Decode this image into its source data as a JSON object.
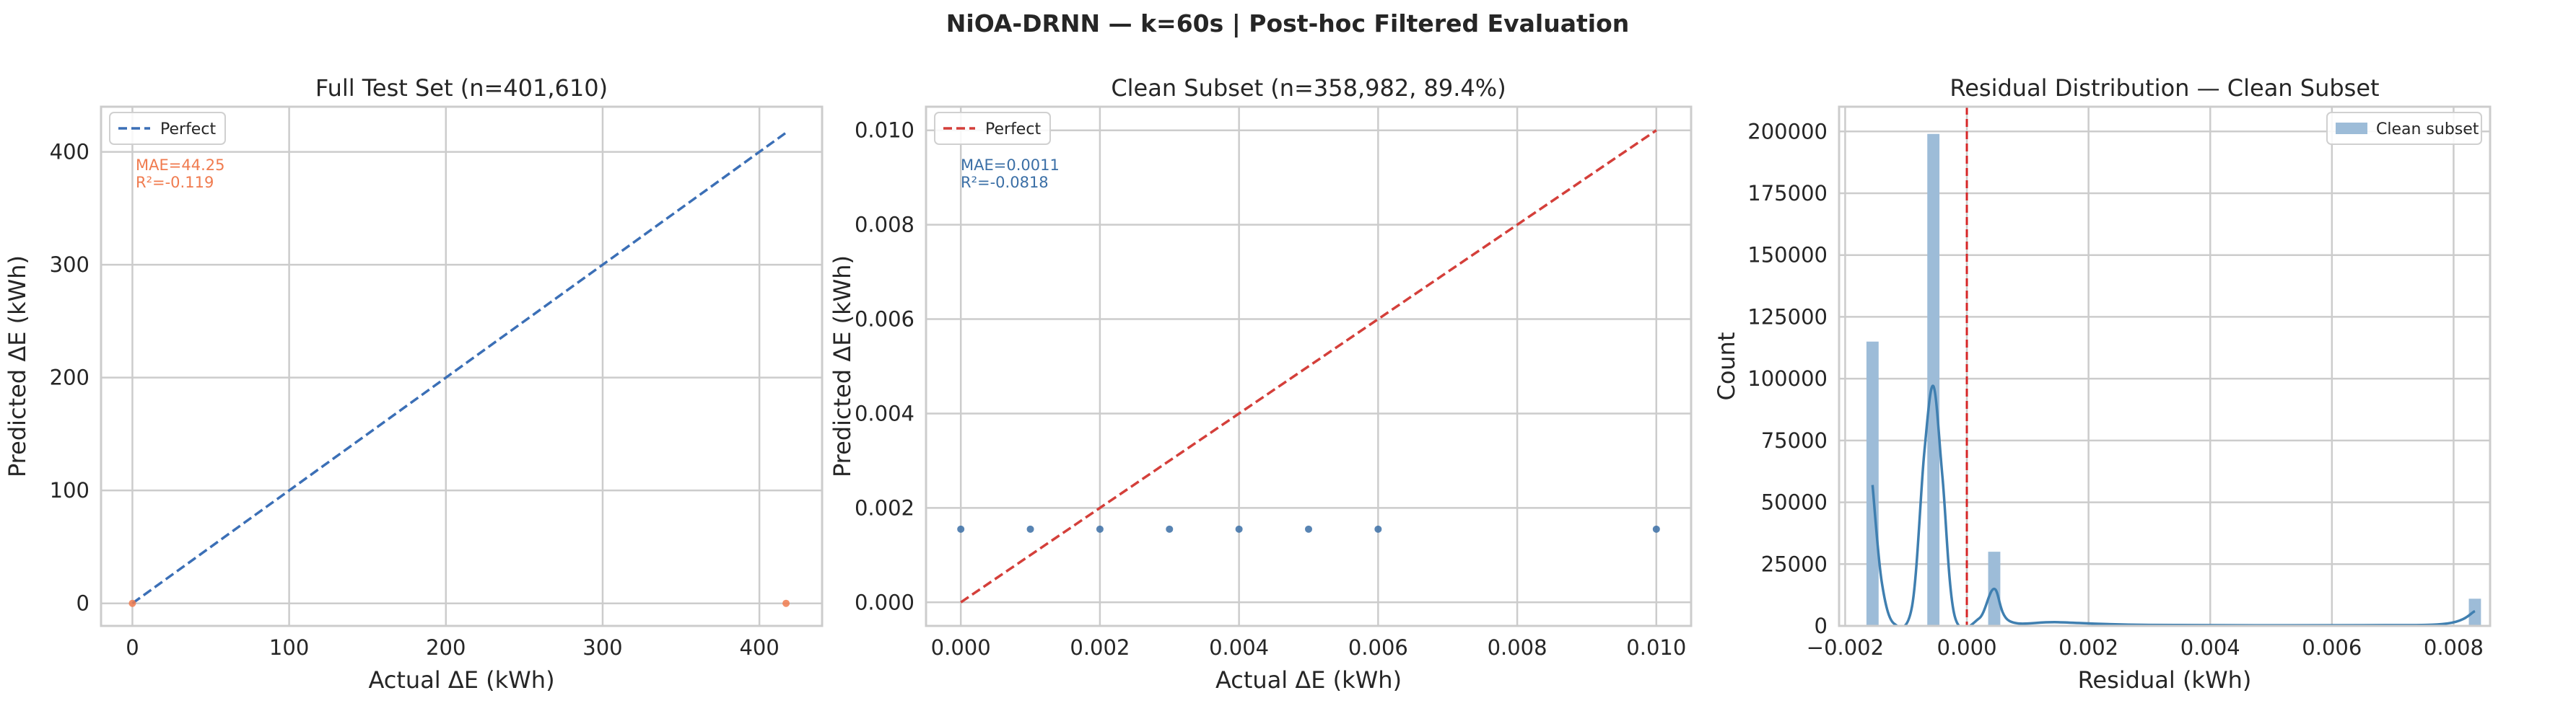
{
  "figure": {
    "suptitle": "NiOA-DRNN — k=60s | Post-hoc Filtered Evaluation"
  },
  "chart_data": [
    {
      "type": "scatter",
      "title": "Full Test Set (n=401,610)",
      "xlabel": "Actual ΔE (kWh)",
      "ylabel": "Predicted ΔE (kWh)",
      "xlim": [
        -20,
        440
      ],
      "ylim": [
        -20,
        440
      ],
      "xticks": [
        0,
        100,
        200,
        300,
        400
      ],
      "yticks": [
        0,
        100,
        200,
        300,
        400
      ],
      "xtick_labels": [
        "0",
        "100",
        "200",
        "300",
        "400"
      ],
      "ytick_labels": [
        "0",
        "100",
        "200",
        "300",
        "400"
      ],
      "grid": true,
      "legend": {
        "location": "upper-left",
        "entries": [
          "Perfect"
        ]
      },
      "reference_line": {
        "label": "Perfect",
        "from": [
          0,
          0
        ],
        "to": [
          417,
          417
        ],
        "color": "#3b6fb6",
        "style": "dashed"
      },
      "points": [
        {
          "x": 0,
          "y": 0
        },
        {
          "x": 417,
          "y": 0
        }
      ],
      "point_color": "#f07b4f",
      "annotation": {
        "lines": [
          "MAE=44.25",
          "R²=-0.119"
        ],
        "color": "#f07b4f"
      }
    },
    {
      "type": "scatter",
      "title": "Clean Subset (n=358,982, 89.4%)",
      "xlabel": "Actual ΔE (kWh)",
      "ylabel": "Predicted ΔE (kWh)",
      "xlim": [
        -0.0005,
        0.0105
      ],
      "ylim": [
        -0.0005,
        0.0105
      ],
      "xticks": [
        0,
        0.002,
        0.004,
        0.006,
        0.008,
        0.01
      ],
      "yticks": [
        0,
        0.002,
        0.004,
        0.006,
        0.008,
        0.01
      ],
      "xtick_labels": [
        "0.000",
        "0.002",
        "0.004",
        "0.006",
        "0.008",
        "0.010"
      ],
      "ytick_labels": [
        "0.000",
        "0.002",
        "0.004",
        "0.006",
        "0.008",
        "0.010"
      ],
      "grid": true,
      "legend": {
        "location": "upper-left",
        "entries": [
          "Perfect"
        ]
      },
      "reference_line": {
        "label": "Perfect",
        "from": [
          0,
          0
        ],
        "to": [
          0.01,
          0.01
        ],
        "color": "#d43f3a",
        "style": "dashed"
      },
      "points": [
        {
          "x": 0.0,
          "y": 0.00155
        },
        {
          "x": 0.001,
          "y": 0.00155
        },
        {
          "x": 0.002,
          "y": 0.00155
        },
        {
          "x": 0.003,
          "y": 0.00155
        },
        {
          "x": 0.004,
          "y": 0.00155
        },
        {
          "x": 0.005,
          "y": 0.00155
        },
        {
          "x": 0.006,
          "y": 0.00155
        },
        {
          "x": 0.01,
          "y": 0.00155
        }
      ],
      "point_color": "#3b6fa6",
      "annotation": {
        "lines": [
          "MAE=0.0011",
          "R²=-0.0818"
        ],
        "color": "#3b6fa6"
      }
    },
    {
      "type": "bar",
      "title": "Residual Distribution — Clean Subset",
      "xlabel": "Residual (kWh)",
      "ylabel": "Count",
      "xlim": [
        -0.0021,
        0.0086
      ],
      "ylim": [
        0,
        210000
      ],
      "xticks": [
        -0.002,
        0,
        0.002,
        0.004,
        0.006,
        0.008
      ],
      "yticks": [
        0,
        25000,
        50000,
        75000,
        100000,
        125000,
        150000,
        175000,
        200000
      ],
      "xtick_labels": [
        "−0.002",
        "0.000",
        "0.002",
        "0.004",
        "0.006",
        "0.008"
      ],
      "ytick_labels": [
        "0",
        "25000",
        "50000",
        "75000",
        "100000",
        "125000",
        "150000",
        "175000",
        "200000"
      ],
      "grid": true,
      "legend": {
        "location": "upper-right",
        "entries": [
          "Clean subset"
        ]
      },
      "bar_color": "#9dbcd8",
      "bin_width": 0.0002,
      "bars": [
        {
          "x": -0.00155,
          "count": 115000
        },
        {
          "x": -0.00055,
          "count": 199000
        },
        {
          "x": 0.00045,
          "count": 30000
        },
        {
          "x": 0.00835,
          "count": 11000
        }
      ],
      "kde_color": "#3f7fb0",
      "kde": [
        {
          "x": -0.00155,
          "count": 57000
        },
        {
          "x": -0.0014,
          "count": 18000
        },
        {
          "x": -0.0012,
          "count": 1000
        },
        {
          "x": -0.0009,
          "count": 8000
        },
        {
          "x": -0.0007,
          "count": 70000
        },
        {
          "x": -0.00055,
          "count": 97000
        },
        {
          "x": -0.0004,
          "count": 60000
        },
        {
          "x": -0.0002,
          "count": 4000
        },
        {
          "x": 0.0002,
          "count": 3000
        },
        {
          "x": 0.00045,
          "count": 15000
        },
        {
          "x": 0.0007,
          "count": 2000
        },
        {
          "x": 0.0015,
          "count": 1500
        },
        {
          "x": 0.003,
          "count": 400
        },
        {
          "x": 0.0065,
          "count": 300
        },
        {
          "x": 0.0079,
          "count": 1000
        },
        {
          "x": 0.00835,
          "count": 6000
        }
      ],
      "vline": {
        "x": 0,
        "color": "#d62728",
        "style": "dashed"
      }
    }
  ]
}
